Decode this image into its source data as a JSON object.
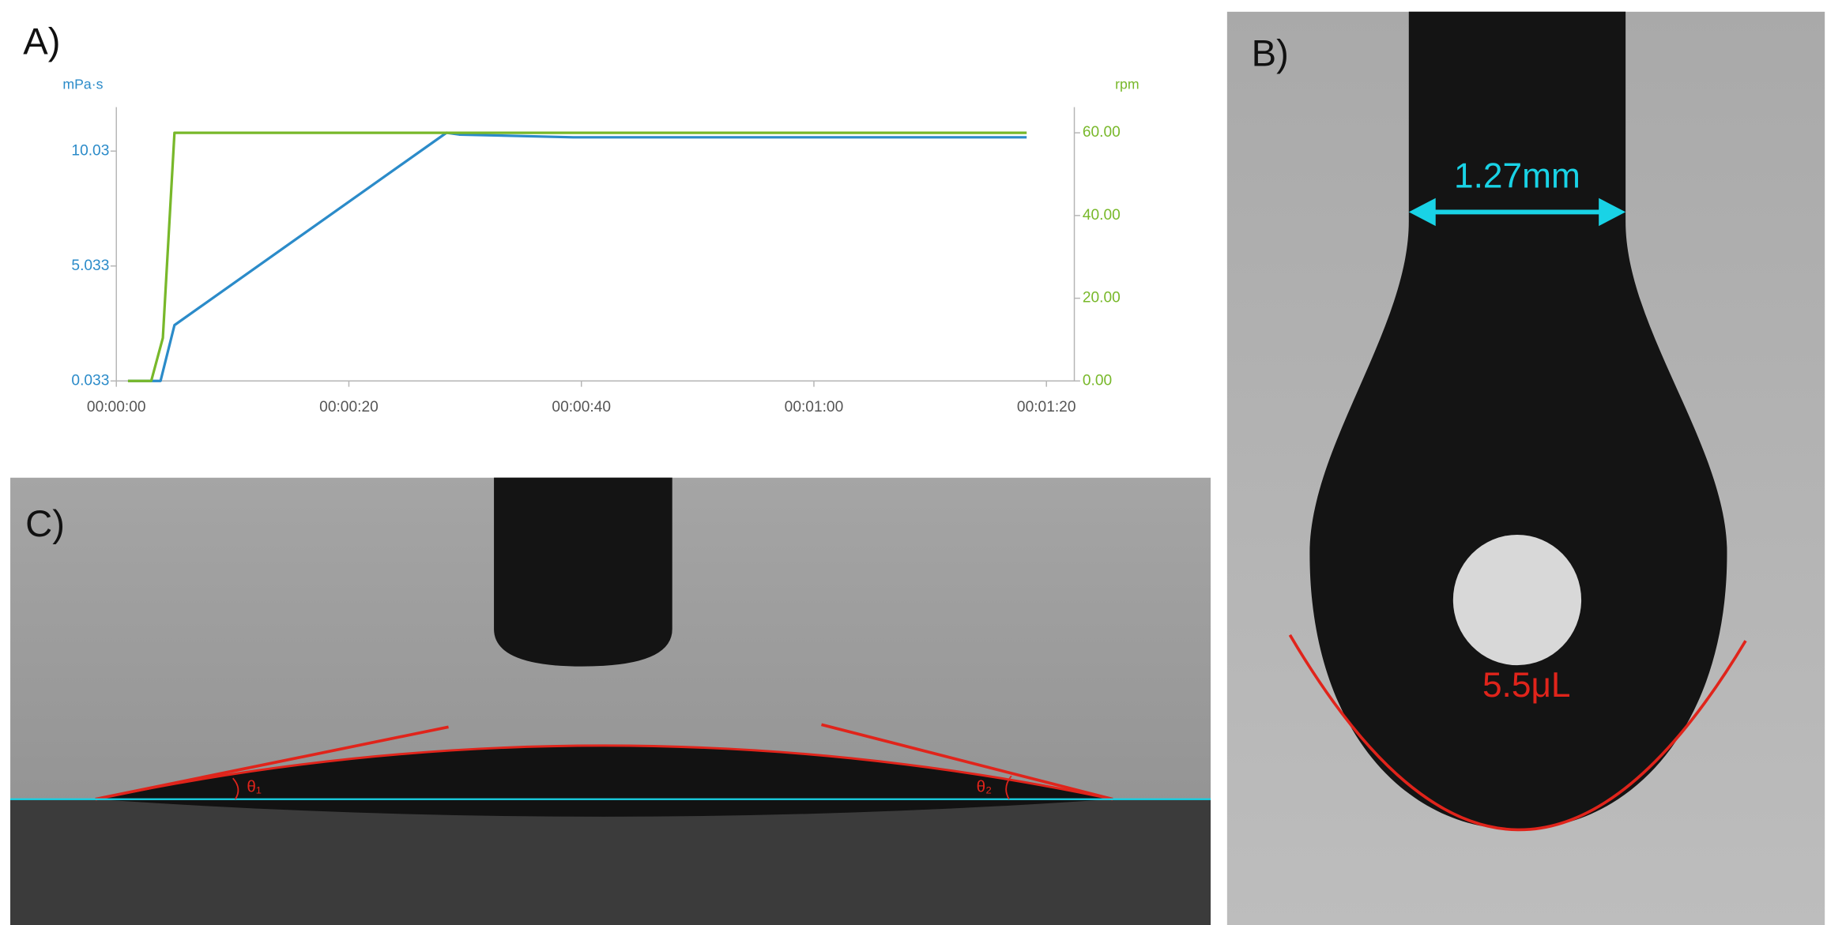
{
  "chart_data": {
    "type": "line",
    "y_label": "mPa·s",
    "y2_label": "rpm",
    "xlim": [
      0,
      82.4
    ],
    "xticks": [
      {
        "value": 0,
        "label": "00:00:00"
      },
      {
        "value": 20,
        "label": "00:00:20"
      },
      {
        "value": 40,
        "label": "00:00:40"
      },
      {
        "value": 60,
        "label": "00:01:00"
      },
      {
        "value": 80,
        "label": "00:01:20"
      }
    ],
    "ylim": [
      0.033,
      11.94
    ],
    "yticks": [
      0.033,
      5.033,
      10.03
    ],
    "y2lim": [
      0,
      66.2
    ],
    "y2ticks": [
      {
        "value": 0,
        "label": "0.00"
      },
      {
        "value": 20,
        "label": "20.00"
      },
      {
        "value": 40,
        "label": "40.00"
      },
      {
        "value": 60,
        "label": "60.00"
      }
    ],
    "grid": false,
    "series": [
      {
        "color": "#2b8bc9",
        "axis": "y",
        "x": [
          1,
          3.8,
          5.0,
          28.4,
          29.5,
          39.3,
          78.3
        ],
        "values": [
          0.033,
          0.033,
          2.46,
          10.83,
          10.75,
          10.63,
          10.63
        ]
      },
      {
        "color": "#78b82a",
        "axis": "y2",
        "x": [
          1,
          3.0,
          4.0,
          5.0,
          78.3
        ],
        "values": [
          0,
          0,
          10.4,
          60,
          60
        ]
      }
    ]
  },
  "panels": {
    "a_label": "A)",
    "b_label": "B)",
    "c_label": "C)",
    "b_width_label": "1.27mm",
    "b_volume_label": "5.5μL",
    "c_angle_left": "θ₁",
    "c_angle_right": "θ₂"
  }
}
